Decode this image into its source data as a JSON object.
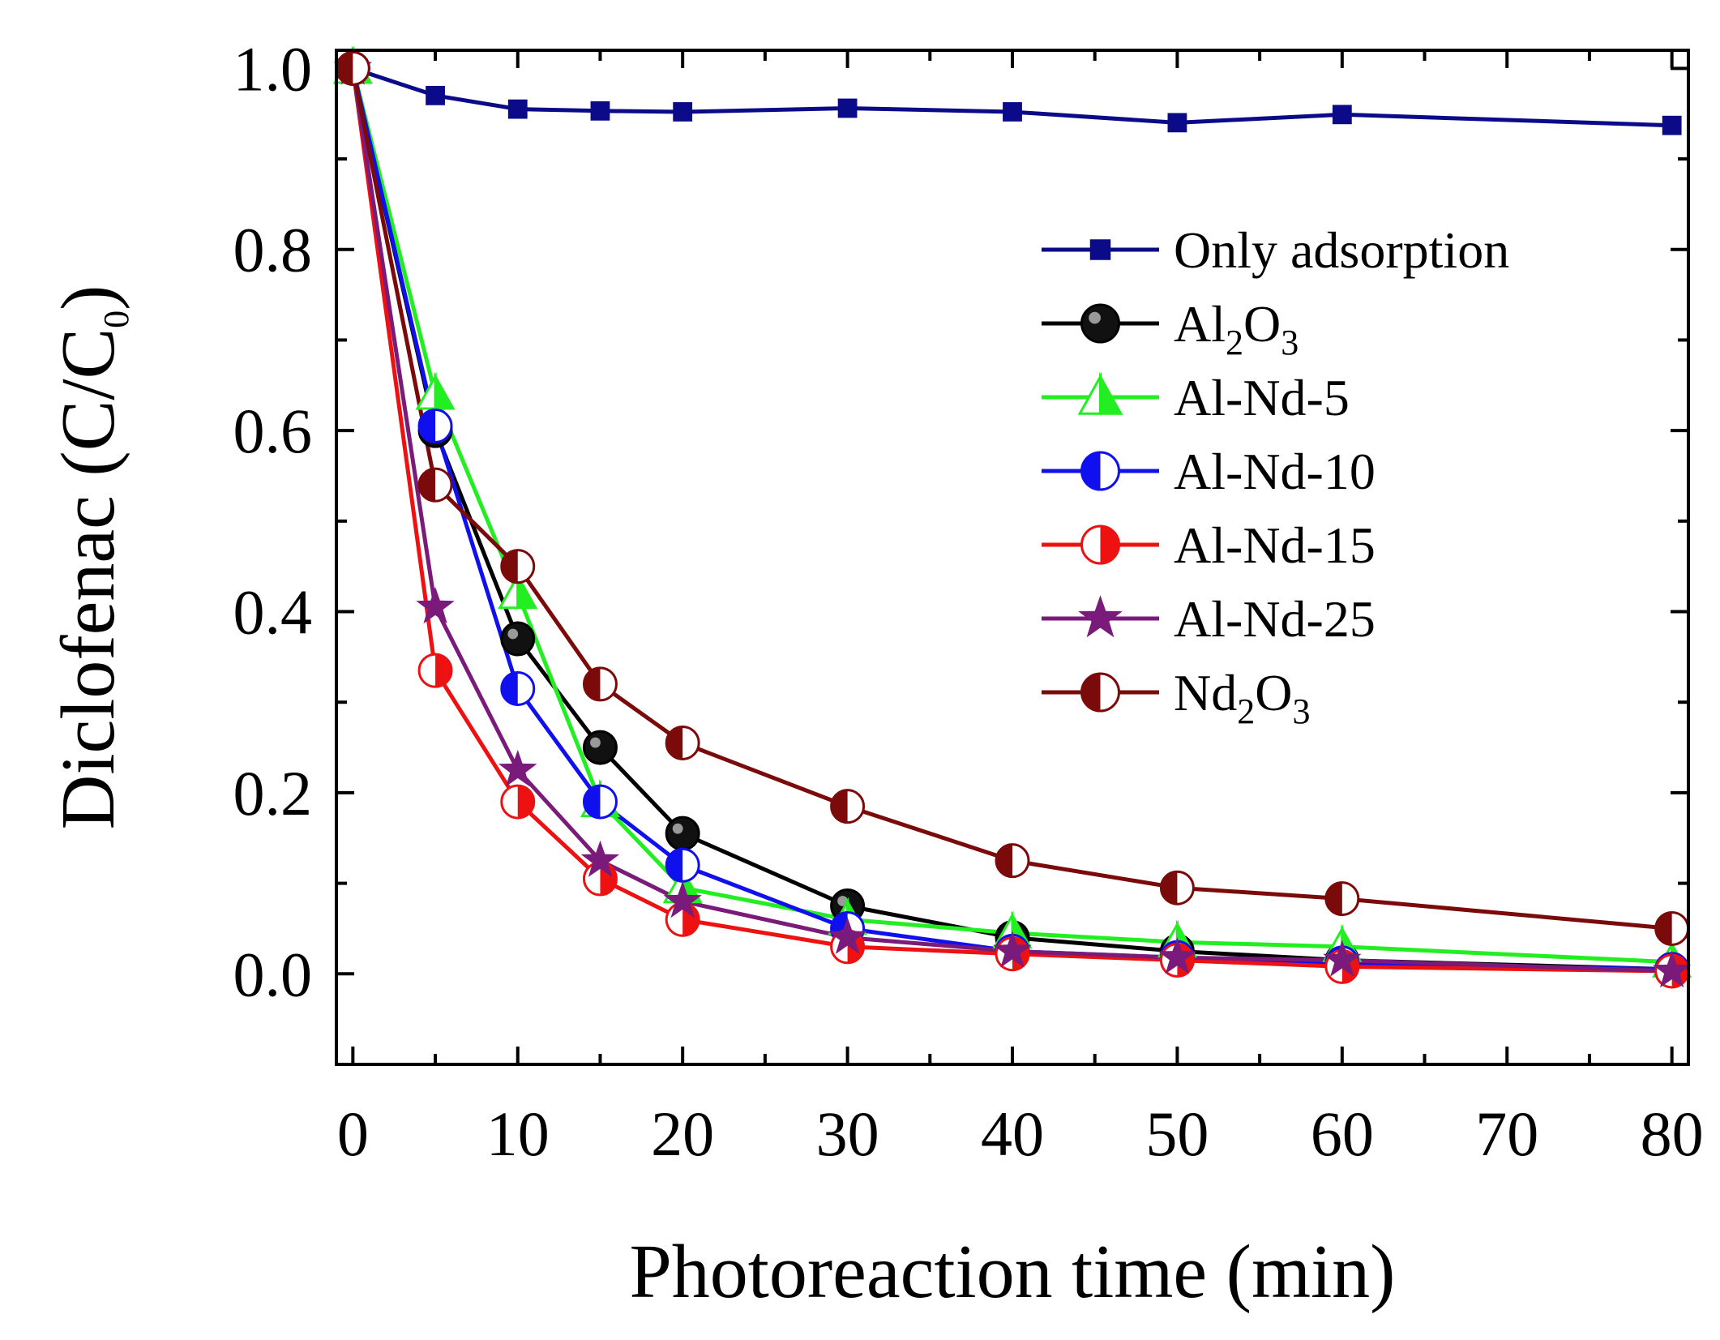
{
  "chart_data": {
    "type": "line",
    "title": "",
    "xlabel": "Photoreaction time (min)",
    "ylabel_parts": {
      "main": "Diclofenac (C/C",
      "sub": "0",
      "end": ")"
    },
    "xlim": [
      -1,
      81
    ],
    "ylim": [
      -0.1,
      1.02
    ],
    "xticks": [
      0,
      10,
      20,
      30,
      40,
      50,
      60,
      70,
      80
    ],
    "xtick_labels": [
      "0",
      "10",
      "20",
      "30",
      "40",
      "50",
      "60",
      "70",
      "80"
    ],
    "yticks": [
      0.0,
      0.2,
      0.4,
      0.6,
      0.8,
      1.0
    ],
    "ytick_labels": [
      "0.0",
      "0.2",
      "0.4",
      "0.6",
      "0.8",
      "1.0"
    ],
    "legend_position": "top-right",
    "series": [
      {
        "name": "Only adsorption",
        "label_parts": [
          {
            "t": "Only adsorption"
          }
        ],
        "color": "#0b0b8a",
        "marker": "square",
        "x": [
          0,
          5,
          10,
          15,
          20,
          30,
          40,
          50,
          60,
          80
        ],
        "y": [
          1.0,
          0.97,
          0.955,
          0.953,
          0.952,
          0.956,
          0.952,
          0.94,
          0.949,
          0.937
        ]
      },
      {
        "name": "Al2O3",
        "label_parts": [
          {
            "t": "Al"
          },
          {
            "t": "2",
            "sub": true
          },
          {
            "t": "O"
          },
          {
            "t": "3",
            "sub": true
          }
        ],
        "color": "#000000",
        "marker": "ball",
        "x": [
          0,
          5,
          10,
          15,
          20,
          30,
          40,
          50,
          60,
          80
        ],
        "y": [
          1.0,
          0.6,
          0.37,
          0.25,
          0.155,
          0.075,
          0.04,
          0.025,
          0.015,
          0.005
        ]
      },
      {
        "name": "Al-Nd-5",
        "label_parts": [
          {
            "t": "Al-Nd-5"
          }
        ],
        "color": "#22ee22",
        "marker": "triangle",
        "x": [
          0,
          5,
          10,
          15,
          20,
          30,
          40,
          50,
          60,
          80
        ],
        "y": [
          1.0,
          0.64,
          0.42,
          0.19,
          0.095,
          0.06,
          0.045,
          0.035,
          0.03,
          0.013
        ]
      },
      {
        "name": "Al-Nd-10",
        "label_parts": [
          {
            "t": "Al-Nd-10"
          }
        ],
        "color": "#1010ee",
        "marker": "half-left",
        "x": [
          0,
          5,
          10,
          15,
          20,
          30,
          40,
          50,
          60,
          80
        ],
        "y": [
          1.0,
          0.605,
          0.315,
          0.19,
          0.12,
          0.05,
          0.025,
          0.018,
          0.012,
          0.005
        ]
      },
      {
        "name": "Al-Nd-15",
        "label_parts": [
          {
            "t": "Al-Nd-15"
          }
        ],
        "color": "#ee1111",
        "marker": "half-right",
        "x": [
          0,
          5,
          10,
          15,
          20,
          30,
          40,
          50,
          60,
          80
        ],
        "y": [
          1.0,
          0.335,
          0.19,
          0.105,
          0.06,
          0.03,
          0.022,
          0.015,
          0.008,
          0.003
        ]
      },
      {
        "name": "Al-Nd-25",
        "label_parts": [
          {
            "t": "Al-Nd-25"
          }
        ],
        "color": "#7a1a7a",
        "marker": "star",
        "x": [
          0,
          5,
          10,
          15,
          20,
          30,
          40,
          50,
          60,
          80
        ],
        "y": [
          1.0,
          0.405,
          0.225,
          0.125,
          0.08,
          0.04,
          0.025,
          0.018,
          0.015,
          0.003
        ]
      },
      {
        "name": "Nd2O3",
        "label_parts": [
          {
            "t": "Nd"
          },
          {
            "t": "2",
            "sub": true
          },
          {
            "t": "O"
          },
          {
            "t": "3",
            "sub": true
          }
        ],
        "color": "#7b0a0a",
        "marker": "half-left",
        "x": [
          0,
          5,
          10,
          15,
          20,
          30,
          40,
          50,
          60,
          80
        ],
        "y": [
          1.0,
          0.54,
          0.45,
          0.32,
          0.255,
          0.185,
          0.125,
          0.095,
          0.083,
          0.05
        ]
      }
    ]
  }
}
